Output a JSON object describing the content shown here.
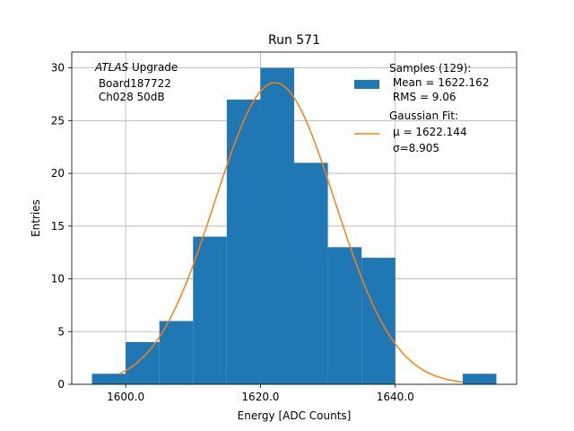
{
  "chart_data": {
    "type": "bar",
    "title": "Run 571",
    "xlabel": "Energy [ADC Counts]",
    "ylabel": "Entries",
    "xlim": [
      1592.0,
      1658.0
    ],
    "ylim": [
      0,
      31.5
    ],
    "xticks": [
      1600.0,
      1620.0,
      1640.0
    ],
    "xtick_labels": [
      "1600.0",
      "1620.0",
      "1640.0"
    ],
    "yticks": [
      0,
      5,
      10,
      15,
      20,
      25,
      30
    ],
    "ytick_labels": [
      "0",
      "5",
      "10",
      "15",
      "20",
      "25",
      "30"
    ],
    "grid": true,
    "legend_position": "top-right",
    "histogram": {
      "bin_edges": [
        1595.0,
        1600.0,
        1605.0,
        1610.0,
        1615.0,
        1620.0,
        1625.0,
        1630.0,
        1635.0,
        1640.0,
        1645.0,
        1650.0,
        1655.0
      ],
      "counts": [
        1,
        4,
        6,
        14,
        27,
        30,
        21,
        13,
        12,
        0,
        0,
        1
      ],
      "color": "#1f77b4"
    },
    "fit": {
      "type": "gaussian",
      "mu": 1622.144,
      "sigma": 8.905,
      "amplitude": 28.6,
      "x_range": [
        1599.0,
        1650.0
      ],
      "color": "#ff7f0e"
    },
    "legend": {
      "samples_lines": [
        "Samples (129):",
        " Mean = 1622.162",
        " RMS = 9.06"
      ],
      "fit_lines": [
        "Gaussian Fit:",
        "μ = 1622.144",
        "σ=8.905"
      ]
    },
    "annotation": {
      "lines": [
        "ATLAS Upgrade",
        " Board187722",
        " Ch028 50dB"
      ]
    }
  }
}
